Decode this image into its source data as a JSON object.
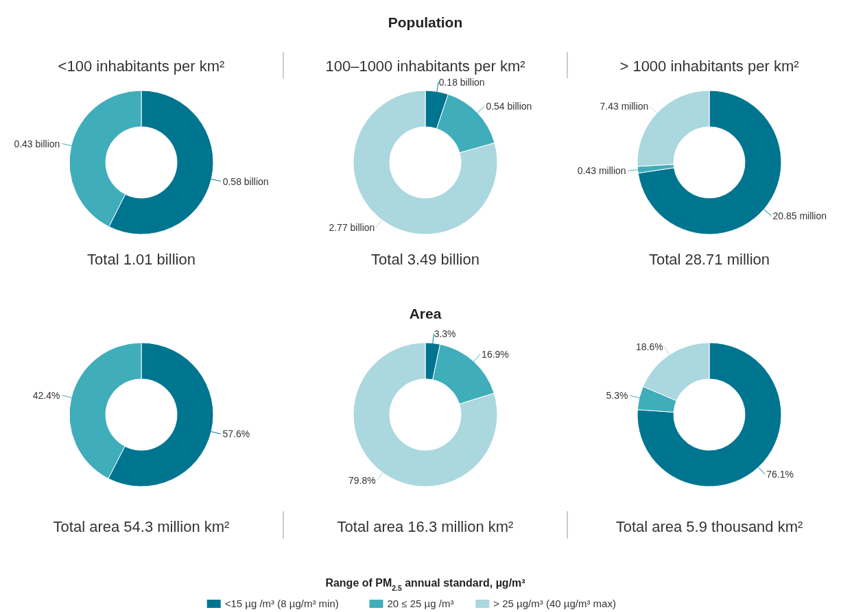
{
  "chart_data": [
    {
      "type": "donut",
      "annotations": [
        "Population"
      ],
      "title": "<100 inhabitants per km²",
      "subtitle": "Total 1.01 billion",
      "categories": [
        null,
        null
      ],
      "values": [
        0.58,
        0.43
      ],
      "value_labels": [
        "0.58 billion",
        "0.43 billion"
      ],
      "colors": [
        "#00758f",
        "#3fadba"
      ]
    },
    {
      "type": "donut",
      "title": "100–1000 inhabitants per km²",
      "subtitle": "Total 3.49 billion",
      "categories": [
        null,
        null,
        null
      ],
      "values": [
        0.18,
        0.54,
        2.77
      ],
      "value_labels": [
        "0.18 billion",
        "0.54 billion",
        "2.77 billion"
      ],
      "colors": [
        "#00758f",
        "#3fadba",
        "#abd7de"
      ]
    },
    {
      "type": "donut",
      "title": "> 1000 inhabitants per km²",
      "subtitle": "Total 28.71 million",
      "categories": [
        null,
        null,
        null
      ],
      "values": [
        20.85,
        0.43,
        7.43
      ],
      "value_labels": [
        "20.85 million",
        "0.43 million",
        "7.43 million"
      ],
      "colors": [
        "#00758f",
        "#3fadba",
        "#abd7de"
      ]
    },
    {
      "type": "donut",
      "annotations": [
        "Area"
      ],
      "subtitle": "Total area 54.3 million km²",
      "categories": [
        null,
        null
      ],
      "values": [
        57.6,
        42.4
      ],
      "value_labels": [
        "57.6%",
        "42.4%"
      ],
      "colors": [
        "#00758f",
        "#3fadba"
      ]
    },
    {
      "type": "donut",
      "subtitle": "Total area 16.3 million km²",
      "categories": [
        null,
        null,
        null
      ],
      "values": [
        3.3,
        16.9,
        79.8
      ],
      "value_labels": [
        "3.3%",
        "16.9%",
        "79.8%"
      ],
      "colors": [
        "#00758f",
        "#3fadba",
        "#abd7de"
      ]
    },
    {
      "type": "donut",
      "subtitle": "Total area 5.9 thousand km²",
      "categories": [
        "<15 µg /m³ (8 µg/m³ min)",
        "20 ≤ 25 µg /m³",
        "> 25 µg/m³ (40 µg/m³ max)"
      ],
      "values": [
        76.1,
        5.3,
        18.6
      ],
      "value_labels": [
        "76.1%",
        "5.3%",
        "18.6%"
      ],
      "colors": [
        "#00758f",
        "#3fadba",
        "#abd7de"
      ],
      "legend": "bottom",
      "legend_title": "Range of PM$_{2.5}$ annual standard, µg/m³"
    }
  ]
}
